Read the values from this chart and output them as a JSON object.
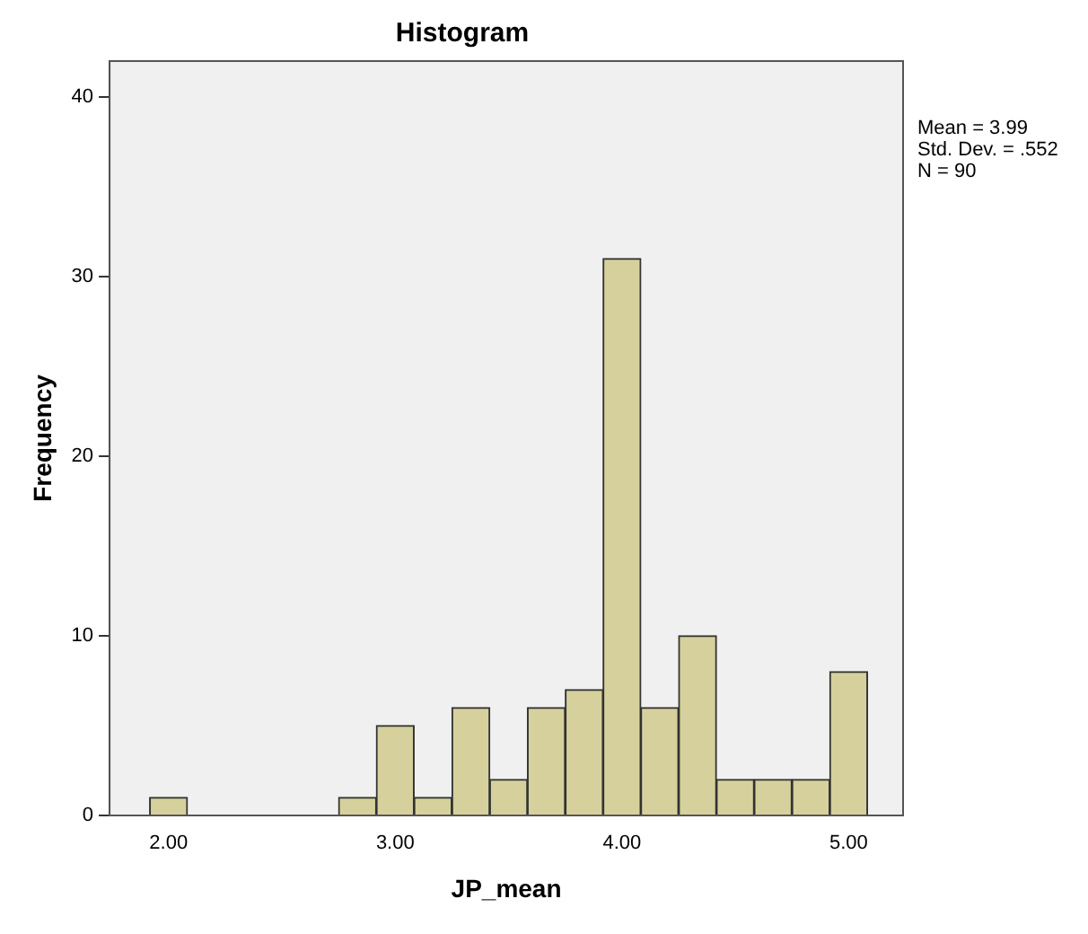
{
  "chart_data": {
    "type": "histogram",
    "title": "Histogram",
    "xlabel": "JP_mean",
    "ylabel": "Frequency",
    "bins": [
      1.917,
      2.083,
      2.25,
      2.417,
      2.583,
      2.75,
      2.917,
      3.083,
      3.25,
      3.417,
      3.583,
      3.75,
      3.917,
      4.083,
      4.25,
      4.417,
      4.583,
      4.75,
      4.917,
      5.083
    ],
    "values": [
      1,
      0,
      0,
      0,
      0,
      1,
      5,
      1,
      6,
      2,
      6,
      7,
      31,
      6,
      10,
      2,
      2,
      2,
      8
    ],
    "color": "#d6d19c",
    "xlim": [
      1.74,
      5.24
    ],
    "xticks": [
      {
        "value": 2,
        "label": "2.00"
      },
      {
        "value": 3,
        "label": "3.00"
      },
      {
        "value": 4,
        "label": "4.00"
      },
      {
        "value": 5,
        "label": "5.00"
      }
    ],
    "ylim": [
      0,
      42
    ],
    "yticks": [
      0,
      10,
      20,
      30,
      40
    ],
    "grid": false,
    "legend": false,
    "annotations": [
      "Mean = 3.99",
      "Std. Dev. = .552",
      "N = 90"
    ]
  }
}
